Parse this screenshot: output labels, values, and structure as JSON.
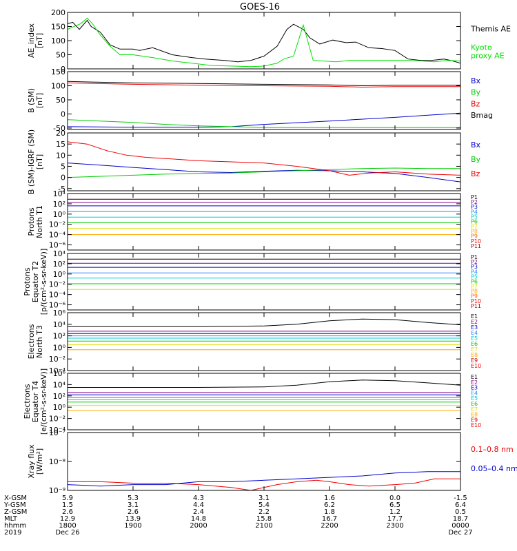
{
  "title": "GOES-16",
  "chart_data": [
    {
      "id": "ae",
      "type": "line",
      "ylabel": "AE_index\n[nT]",
      "yscale": "linear",
      "ylim": [
        0,
        200
      ],
      "yticks": [
        0,
        50,
        100,
        150,
        200
      ],
      "yticklabels": [
        "0",
        "50",
        "100",
        "150",
        "200"
      ],
      "xlim": [
        0,
        6
      ],
      "grid": false,
      "legend": "right",
      "series": [
        {
          "name": "Themis AE",
          "color": "#000000",
          "x": [
            0,
            0.08,
            0.18,
            0.3,
            0.36,
            0.5,
            0.65,
            0.8,
            1.0,
            1.1,
            1.3,
            1.6,
            1.9,
            2.1,
            2.4,
            2.6,
            2.8,
            3.0,
            3.2,
            3.35,
            3.45,
            3.6,
            3.7,
            3.85,
            4.05,
            4.25,
            4.4,
            4.6,
            4.8,
            5.0,
            5.2,
            5.4,
            5.55,
            5.75,
            5.85,
            6.0
          ],
          "y": [
            160,
            165,
            140,
            172,
            150,
            130,
            85,
            70,
            70,
            65,
            75,
            50,
            40,
            35,
            30,
            25,
            30,
            45,
            80,
            140,
            158,
            140,
            110,
            88,
            102,
            93,
            95,
            75,
            72,
            65,
            35,
            30,
            30,
            35,
            30,
            20
          ]
        },
        {
          "name": "Kyoto\nproxy AE",
          "color": "#00e000",
          "x": [
            0,
            0.1,
            0.2,
            0.3,
            0.38,
            0.5,
            0.65,
            0.8,
            1.0,
            1.3,
            1.6,
            1.9,
            2.2,
            2.5,
            2.8,
            3.0,
            3.2,
            3.3,
            3.45,
            3.6,
            3.75,
            3.9,
            4.1,
            4.3,
            4.5,
            4.7,
            4.9,
            5.0,
            5.2,
            5.4,
            5.6,
            5.8,
            6.0
          ],
          "y": [
            140,
            150,
            160,
            180,
            160,
            120,
            80,
            50,
            50,
            40,
            28,
            20,
            12,
            10,
            8,
            10,
            20,
            35,
            45,
            155,
            30,
            28,
            25,
            30,
            30,
            30,
            30,
            30,
            30,
            28,
            25,
            30,
            28
          ]
        }
      ]
    },
    {
      "id": "bsm",
      "type": "line",
      "ylabel": "B (SM)\n[nT]",
      "yscale": "linear",
      "ylim": [
        -55,
        150
      ],
      "yticks": [
        -50,
        0,
        50,
        100,
        150
      ],
      "yticklabels": [
        "-50",
        "0",
        "50",
        "100",
        "150"
      ],
      "xlim": [
        0,
        6
      ],
      "grid": false,
      "legend": "right",
      "series": [
        {
          "name": "Bx",
          "color": "#0000cc",
          "x": [
            0,
            1,
            2,
            2.5,
            3,
            4,
            5,
            6
          ],
          "y": [
            -45,
            -47,
            -47,
            -45,
            -37,
            -25,
            -12,
            3
          ]
        },
        {
          "name": "By",
          "color": "#00cc00",
          "x": [
            0,
            1,
            1.5,
            2,
            2.5,
            3,
            4,
            5,
            6
          ],
          "y": [
            -20,
            -30,
            -37,
            -42,
            -45,
            -48,
            -48,
            -48,
            -48
          ]
        },
        {
          "name": "Bz",
          "color": "#ee0000",
          "x": [
            0,
            1,
            2,
            3,
            4,
            4.5,
            5,
            6
          ],
          "y": [
            110,
            105,
            102,
            100,
            98,
            95,
            97,
            97
          ]
        },
        {
          "name": "Bmag",
          "color": "#000000",
          "x": [
            0,
            1,
            2,
            3,
            4,
            4.5,
            5,
            6
          ],
          "y": [
            115,
            110,
            108,
            105,
            103,
            100,
            102,
            102
          ]
        }
      ]
    },
    {
      "id": "bigrf",
      "type": "line",
      "ylabel": "B (SM)-IGRF (SM)\n[nT]",
      "yscale": "linear",
      "ylim": [
        -6,
        20
      ],
      "yticks": [
        -5,
        0,
        5,
        10,
        15,
        20
      ],
      "yticklabels": [
        "-5",
        "0",
        "5",
        "10",
        "15",
        "20"
      ],
      "xlim": [
        0,
        6
      ],
      "grid": false,
      "legend": "right",
      "series": [
        {
          "name": "Bx",
          "color": "#0000cc",
          "x": [
            0,
            0.5,
            1,
            1.5,
            2,
            2.5,
            3,
            3.5,
            4,
            4.5,
            5,
            5.5,
            6
          ],
          "y": [
            6.5,
            5.5,
            4.5,
            3.5,
            2.5,
            2.2,
            2.8,
            3.2,
            3,
            2.5,
            1.8,
            0,
            -2
          ]
        },
        {
          "name": "By",
          "color": "#00cc00",
          "x": [
            0,
            0.5,
            1,
            1.5,
            2,
            2.5,
            3,
            3.5,
            4,
            4.5,
            5,
            5.5,
            6
          ],
          "y": [
            0,
            0.5,
            1,
            1.5,
            1.8,
            2,
            2.5,
            3,
            3.5,
            4,
            4.2,
            4,
            4
          ]
        },
        {
          "name": "Bz",
          "color": "#ee0000",
          "x": [
            0,
            0.3,
            0.6,
            0.9,
            1.2,
            1.5,
            2,
            2.5,
            3,
            3.5,
            4,
            4.3,
            4.6,
            5,
            5.5,
            6
          ],
          "y": [
            16,
            15,
            12,
            10,
            9,
            8.5,
            7.5,
            7,
            6.5,
            5,
            3,
            1,
            2,
            2.5,
            1.5,
            1
          ]
        }
      ]
    },
    {
      "id": "pn",
      "type": "line",
      "ylabel": "Protons\nNorth T1",
      "yscale": "log",
      "ylim": [
        -7,
        4
      ],
      "yticks": [
        -6,
        -4,
        -2,
        0,
        2,
        4
      ],
      "yticklabels": [
        "10⁻⁶",
        "10⁻⁴",
        "10⁻²",
        "10⁰",
        "10²",
        "10⁴"
      ],
      "xlim": [
        0,
        6
      ],
      "grid": false,
      "legend": "right",
      "series": [
        {
          "name": "P1",
          "color": "#000000",
          "x": [
            0,
            6
          ],
          "y": [
            2.9,
            2.9
          ]
        },
        {
          "name": "P2",
          "color": "#880088",
          "x": [
            0,
            6
          ],
          "y": [
            2.3,
            2.3
          ]
        },
        {
          "name": "P3",
          "color": "#0000cc",
          "x": [
            0,
            6
          ],
          "y": [
            1.6,
            1.6
          ]
        },
        {
          "name": "P4",
          "color": "#3388ff",
          "x": [
            0,
            6
          ],
          "y": [
            0.5,
            0.5
          ]
        },
        {
          "name": "P5",
          "color": "#00cccc",
          "x": [
            0,
            6
          ],
          "y": [
            -0.6,
            -0.6
          ]
        },
        {
          "name": "P6",
          "color": "#00cc00",
          "x": [
            0,
            6
          ],
          "y": [
            -1.7,
            -1.7
          ]
        },
        {
          "name": "P7",
          "color": "#dddd00",
          "x": [
            0,
            6
          ],
          "y": [
            -2.8,
            -2.8
          ]
        },
        {
          "name": "P8",
          "color": "#ffaa00",
          "x": [
            0,
            6
          ],
          "y": [
            -4.0,
            -4.0
          ]
        },
        {
          "name": "P9",
          "color": "#ff6600"
        },
        {
          "name": "P10",
          "color": "#ee0000"
        },
        {
          "name": "P11",
          "color": "#aa0000"
        }
      ]
    },
    {
      "id": "pe",
      "type": "line",
      "ylabel": "Protons\nEquator T2\n[p/(cm²-s-sr-keV)]",
      "yscale": "log",
      "ylim": [
        -7,
        4
      ],
      "yticks": [
        -6,
        -4,
        -2,
        0,
        2,
        4
      ],
      "yticklabels": [
        "10⁻⁶",
        "10⁻⁴",
        "10⁻²",
        "10⁰",
        "10²",
        "10⁴"
      ],
      "xlim": [
        0,
        6
      ],
      "grid": false,
      "legend": "right",
      "series": [
        {
          "name": "P1",
          "color": "#000000",
          "x": [
            0,
            6
          ],
          "y": [
            2.9,
            2.9
          ]
        },
        {
          "name": "P2",
          "color": "#880088",
          "x": [
            0,
            6
          ],
          "y": [
            2.1,
            2.1
          ]
        },
        {
          "name": "P3",
          "color": "#0000cc",
          "x": [
            0,
            6
          ],
          "y": [
            1.3,
            1.3
          ]
        },
        {
          "name": "P4",
          "color": "#3388ff",
          "x": [
            0,
            6
          ],
          "y": [
            0.2,
            0.2
          ]
        },
        {
          "name": "P5",
          "color": "#00cccc",
          "x": [
            0,
            6
          ],
          "y": [
            -0.8,
            -0.8
          ]
        },
        {
          "name": "P6",
          "color": "#00cc00",
          "x": [
            0,
            6
          ],
          "y": [
            -1.9,
            -1.9
          ]
        },
        {
          "name": "P7",
          "color": "#dddd00",
          "x": [
            0,
            6
          ],
          "y": [
            -3.0,
            -3.0
          ]
        },
        {
          "name": "P8",
          "color": "#ffaa00"
        },
        {
          "name": "P9",
          "color": "#ff6600"
        },
        {
          "name": "P10",
          "color": "#ee0000"
        },
        {
          "name": "P11",
          "color": "#aa0000"
        }
      ]
    },
    {
      "id": "en",
      "type": "line",
      "ylabel": "Electrons\nNorth T3",
      "yscale": "log",
      "ylim": [
        -4,
        6
      ],
      "yticks": [
        -4,
        -2,
        0,
        2,
        4,
        6
      ],
      "yticklabels": [
        "10⁻⁴",
        "10⁻²",
        "10⁰",
        "10²",
        "10⁴",
        "10⁶"
      ],
      "xlim": [
        0,
        6
      ],
      "grid": false,
      "legend": "right",
      "series": [
        {
          "name": "E1",
          "color": "#000000",
          "x": [
            0,
            1,
            2,
            3,
            3.5,
            4,
            4.5,
            5,
            5.5,
            6
          ],
          "y": [
            3.6,
            3.6,
            3.6,
            3.7,
            4.0,
            4.6,
            4.9,
            4.8,
            4.3,
            3.9
          ]
        },
        {
          "name": "E2",
          "color": "#880088",
          "x": [
            0,
            6
          ],
          "y": [
            2.8,
            2.8
          ]
        },
        {
          "name": "E3",
          "color": "#0000cc",
          "x": [
            0,
            6
          ],
          "y": [
            2.4,
            2.4
          ]
        },
        {
          "name": "E4",
          "color": "#3388ff",
          "x": [
            0,
            6
          ],
          "y": [
            2.0,
            2.0
          ]
        },
        {
          "name": "E5",
          "color": "#00cccc",
          "x": [
            0,
            6
          ],
          "y": [
            1.6,
            1.6
          ]
        },
        {
          "name": "E6",
          "color": "#00cc00",
          "x": [
            0,
            6
          ],
          "y": [
            1.1,
            1.1
          ]
        },
        {
          "name": "E7",
          "color": "#dddd00",
          "x": [
            0,
            6
          ],
          "y": [
            0.5,
            0.5
          ]
        },
        {
          "name": "E8",
          "color": "#ffaa00",
          "x": [
            0,
            6
          ],
          "y": [
            -0.4,
            -0.4
          ]
        },
        {
          "name": "E9",
          "color": "#cc0000"
        },
        {
          "name": "E10",
          "color": "#ee0000"
        }
      ]
    },
    {
      "id": "ee",
      "type": "line",
      "ylabel": "Electrons\nEquator T4\n[e/(cm²-s-sr-keV)]",
      "yscale": "log",
      "ylim": [
        -4,
        6
      ],
      "yticks": [
        -4,
        -2,
        0,
        2,
        4,
        6
      ],
      "yticklabels": [
        "10⁻⁴",
        "10⁻²",
        "10⁰",
        "10²",
        "10⁴",
        "10⁶"
      ],
      "xlim": [
        0,
        6
      ],
      "grid": false,
      "legend": "right",
      "series": [
        {
          "name": "E1",
          "color": "#000000",
          "x": [
            0,
            1,
            2,
            3,
            3.5,
            4,
            4.5,
            5,
            5.5,
            6
          ],
          "y": [
            3.5,
            3.5,
            3.5,
            3.6,
            3.9,
            4.5,
            4.8,
            4.7,
            4.3,
            3.9
          ]
        },
        {
          "name": "E2",
          "color": "#880088",
          "x": [
            0,
            6
          ],
          "y": [
            2.6,
            2.6
          ]
        },
        {
          "name": "E3",
          "color": "#0000cc",
          "x": [
            0,
            6
          ],
          "y": [
            2.2,
            2.2
          ]
        },
        {
          "name": "E4",
          "color": "#3388ff",
          "x": [
            0,
            6
          ],
          "y": [
            1.7,
            1.7
          ]
        },
        {
          "name": "E5",
          "color": "#00cccc",
          "x": [
            0,
            6
          ],
          "y": [
            1.3,
            1.3
          ]
        },
        {
          "name": "E6",
          "color": "#00cc00",
          "x": [
            0,
            6
          ],
          "y": [
            0.9,
            0.9
          ]
        },
        {
          "name": "E7",
          "color": "#dddd00",
          "x": [
            0,
            6
          ],
          "y": [
            0.3,
            0.3
          ]
        },
        {
          "name": "E8",
          "color": "#ffaa00",
          "x": [
            0,
            6
          ],
          "y": [
            -0.6,
            -0.6
          ]
        },
        {
          "name": "E9",
          "color": "#cc0000"
        },
        {
          "name": "E10",
          "color": "#ee0000"
        }
      ]
    },
    {
      "id": "xray",
      "type": "line",
      "ylabel": "Xray flux\n[W/m²]",
      "yscale": "log",
      "ylim": [
        -9,
        -7
      ],
      "yticks": [
        -9,
        -8,
        -7
      ],
      "yticklabels": [
        "10⁻⁹",
        "10⁻⁸",
        "10⁻⁷"
      ],
      "xlim": [
        0,
        6
      ],
      "grid": false,
      "legend": "right",
      "series": [
        {
          "name": "0.1–0.8 nm",
          "color": "#ee0000",
          "x": [
            0,
            0.5,
            1,
            1.5,
            2,
            2.5,
            2.8,
            3,
            3.2,
            3.5,
            3.8,
            4,
            4.3,
            4.6,
            5,
            5.3,
            5.6,
            6
          ],
          "y": [
            -8.7,
            -8.7,
            -8.75,
            -8.75,
            -8.8,
            -8.9,
            -9.0,
            -8.9,
            -8.8,
            -8.7,
            -8.65,
            -8.7,
            -8.8,
            -8.85,
            -8.8,
            -8.75,
            -8.6,
            -8.6
          ]
        },
        {
          "name": "0.05–0.4 nm",
          "color": "#0000cc",
          "x": [
            0,
            0.5,
            1,
            1.5,
            2,
            2.5,
            3,
            3.5,
            4,
            4.5,
            5,
            5.5,
            6
          ],
          "y": [
            -8.8,
            -8.85,
            -8.8,
            -8.8,
            -8.7,
            -8.7,
            -8.65,
            -8.6,
            -8.55,
            -8.5,
            -8.4,
            -8.35,
            -8.35
          ]
        }
      ]
    }
  ],
  "ephemeris": {
    "row_labels": [
      "X-GSM",
      "Y-GSM",
      "Z-GSM",
      "MLT",
      "hhmm",
      "2019"
    ],
    "columns": [
      {
        "vals": [
          "5.9",
          "1.5",
          "2.6",
          "12.9",
          "1800",
          "Dec 26"
        ]
      },
      {
        "vals": [
          "5.3",
          "3.1",
          "2.6",
          "13.9",
          "1900",
          ""
        ]
      },
      {
        "vals": [
          "4.3",
          "4.4",
          "2.4",
          "14.8",
          "2000",
          ""
        ]
      },
      {
        "vals": [
          "3.1",
          "5.4",
          "2.2",
          "15.8",
          "2100",
          ""
        ]
      },
      {
        "vals": [
          "1.6",
          "6.2",
          "1.8",
          "16.7",
          "2200",
          ""
        ]
      },
      {
        "vals": [
          "0.0",
          "6.5",
          "1.2",
          "17.7",
          "2300",
          ""
        ]
      },
      {
        "vals": [
          "-1.5",
          "6.4",
          "0.5",
          "18.7",
          "0000",
          "Dec 27"
        ]
      }
    ]
  }
}
